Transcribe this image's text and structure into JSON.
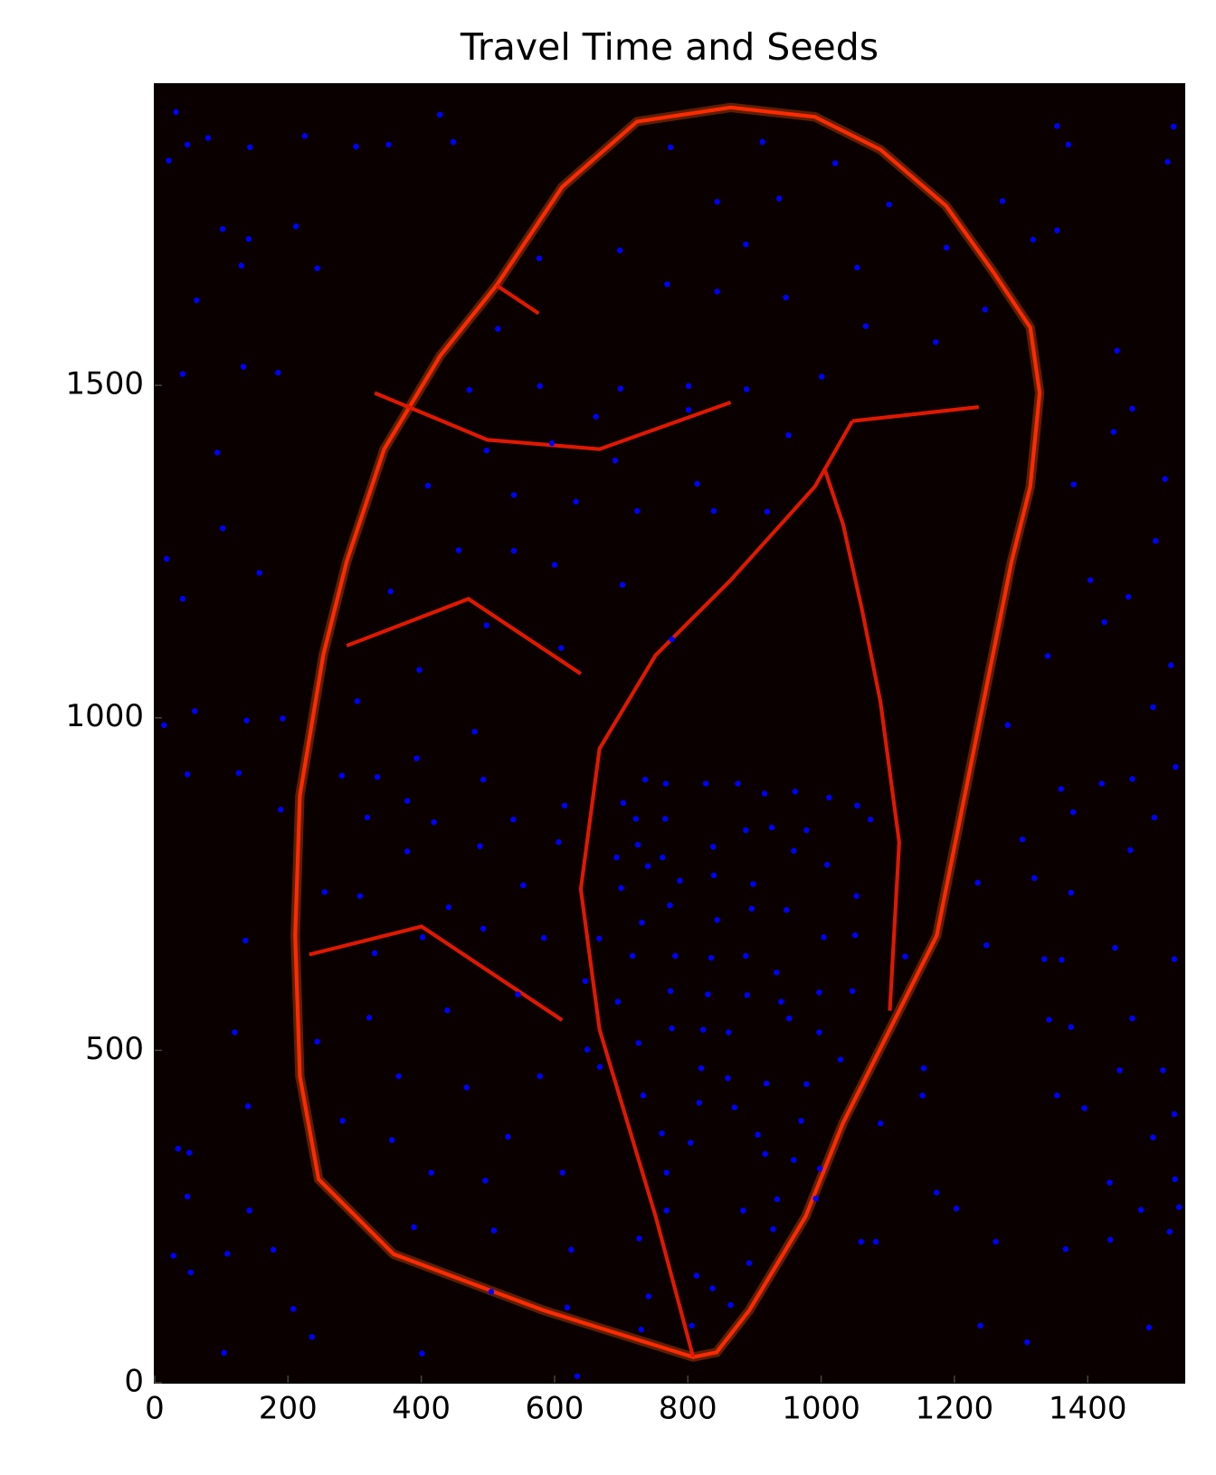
{
  "chart_data": {
    "type": "scatter",
    "title": "Travel Time and Seeds",
    "color": "#0000ff",
    "x": [
      32,
      21,
      49,
      80,
      143,
      225,
      302,
      351,
      428,
      448,
      102,
      141,
      130,
      212,
      244,
      63,
      42,
      133,
      185,
      94,
      102,
      18,
      157,
      42,
      192,
      138,
      126,
      60,
      14,
      189,
      49,
      136,
      120,
      140,
      35,
      52,
      49,
      142,
      28,
      109,
      178,
      54,
      208,
      236,
      104,
      401,
      634,
      1354,
      1371,
      1529,
      1520,
      1272,
      1318,
      1354,
      1444,
      1467,
      1439,
      1516,
      1379,
      1502,
      1404,
      1461,
      1425,
      1340,
      1525,
      1498,
      1532,
      1280,
      1360,
      1421,
      1467,
      1302,
      1378,
      1500,
      1464,
      1320,
      1235,
      1375,
      1248,
      1335,
      1361,
      1441,
      1530,
      1375,
      1342,
      1467,
      1513,
      1448,
      1354,
      1395,
      1433,
      1530,
      1498,
      1531,
      1537,
      1523,
      1480,
      1434,
      1367,
      1262,
      1309,
      1492,
      1239,
      1173,
      1203,
      1089,
      1060,
      1082,
      1152,
      1126,
      1154,
      577,
      698,
      774,
      844,
      912,
      1021,
      1102,
      1188,
      937,
      887,
      769,
      844,
      947,
      1054,
      1246,
      1172,
      1067,
      1001,
      888,
      801,
      699,
      578,
      515,
      472,
      498,
      596,
      662,
      801,
      691,
      632,
      539,
      410,
      456,
      539,
      600,
      702,
      776,
      839,
      919,
      951,
      814,
      724,
      354,
      498,
      610,
      397,
      304,
      480,
      393,
      281,
      334,
      493,
      615,
      319,
      379,
      538,
      606,
      419,
      488,
      379,
      553,
      255,
      308,
      441,
      402,
      493,
      584,
      330,
      545,
      439,
      322,
      244,
      578,
      366,
      468,
      530,
      282,
      356,
      415,
      496,
      612,
      389,
      509,
      625,
      727,
      619,
      505,
      730,
      667,
      646,
      695,
      668,
      649,
      726,
      733,
      761,
      804,
      768,
      768,
      741,
      813,
      806,
      837,
      864,
      892,
      883,
      928,
      934,
      916,
      992,
      959,
      998,
      970,
      905,
      870,
      817,
      820,
      860,
      918,
      978,
      1029,
      1047,
      997,
      952,
      861,
      823,
      776,
      774,
      830,
      889,
      940,
      997,
      933,
      887,
      835,
      781,
      717,
      731,
      773,
      844,
      896,
      948,
      1004,
      1051,
      1053,
      1009,
      959,
      898,
      839,
      788,
      740,
      700,
      693,
      725,
      762,
      838,
      887,
      926,
      978,
      1074,
      1054,
      1012,
      961,
      915,
      875,
      827,
      766,
      767,
      722,
      703,
      736
    ],
    "y": [
      1911,
      1838,
      1862,
      1872,
      1858,
      1875,
      1859,
      1862,
      1907,
      1866,
      1735,
      1720,
      1680,
      1739,
      1676,
      1628,
      1517,
      1528,
      1519,
      1399,
      1285,
      1239,
      1218,
      1179,
      999,
      996,
      917,
      1010,
      989,
      862,
      915,
      665,
      527,
      416,
      352,
      346,
      280,
      259,
      191,
      194,
      200,
      166,
      111,
      69,
      45,
      44,
      10,
      1890,
      1862,
      1889,
      1836,
      1777,
      1719,
      1733,
      1552,
      1465,
      1430,
      1359,
      1351,
      1266,
      1207,
      1182,
      1144,
      1093,
      1079,
      1016,
      926,
      989,
      893,
      901,
      908,
      817,
      858,
      850,
      801,
      759,
      752,
      737,
      658,
      637,
      636,
      654,
      637,
      535,
      546,
      548,
      470,
      470,
      432,
      413,
      301,
      404,
      369,
      306,
      264,
      227,
      260,
      215,
      201,
      212,
      61,
      83,
      86,
      286,
      262,
      390,
      212,
      212,
      432,
      641,
      473,
      1691,
      1703,
      1858,
      1776,
      1866,
      1834,
      1772,
      1707,
      1781,
      1712,
      1652,
      1641,
      1632,
      1677,
      1614,
      1565,
      1589,
      1513,
      1494,
      1499,
      1495,
      1499,
      1585,
      1493,
      1402,
      1413,
      1453,
      1463,
      1387,
      1325,
      1335,
      1349,
      1252,
      1251,
      1230,
      1200,
      1118,
      1311,
      1310,
      1425,
      1352,
      1311,
      1190,
      1139,
      1105,
      1072,
      1025,
      979,
      939,
      913,
      911,
      907,
      868,
      850,
      875,
      847,
      813,
      843,
      807,
      799,
      748,
      738,
      732,
      715,
      670,
      683,
      669,
      646,
      584,
      560,
      549,
      513,
      461,
      461,
      444,
      370,
      394,
      365,
      316,
      304,
      316,
      234,
      229,
      200,
      217,
      113,
      137,
      80,
      668,
      604,
      573,
      475,
      501,
      511,
      432,
      375,
      361,
      316,
      259,
      130,
      161,
      86,
      142,
      117,
      180,
      259,
      231,
      276,
      344,
      277,
      335,
      322,
      394,
      373,
      414,
      421,
      473,
      458,
      450,
      449,
      486,
      589,
      527,
      548,
      527,
      531,
      533,
      589,
      584,
      583,
      573,
      587,
      617,
      642,
      639,
      642,
      642,
      692,
      718,
      696,
      713,
      711,
      670,
      673,
      732,
      779,
      800,
      750,
      763,
      755,
      777,
      744,
      790,
      809,
      790,
      806,
      831,
      835,
      831,
      847,
      868,
      880,
      889,
      886,
      901,
      901,
      848,
      901,
      848,
      872,
      907
    ],
    "xlim": [
      0,
      1545
    ],
    "ylim": [
      0,
      1953
    ],
    "xticks": [
      0,
      200,
      400,
      600,
      800,
      1000,
      1200,
      1400
    ],
    "yticks": [
      0,
      500,
      1000,
      1500
    ]
  }
}
